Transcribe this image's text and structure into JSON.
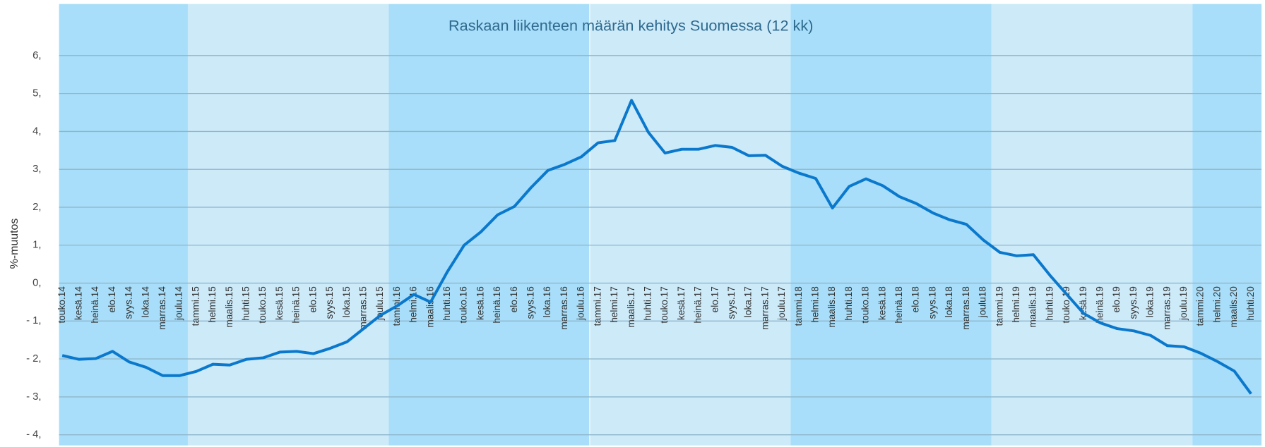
{
  "chart_data": {
    "type": "line",
    "title": "Raskaan liikenteen määrän kehitys Suomessa (12 kk)",
    "y_label": "%-muutos",
    "categories": [
      "touko.14",
      "kesä.14",
      "heinä.14",
      "elo.14",
      "syys.14",
      "loka.14",
      "marras.14",
      "joulu.14",
      "tammi.15",
      "helmi.15",
      "maalis.15",
      "huhti.15",
      "touko.15",
      "kesä.15",
      "heinä.15",
      "elo.15",
      "syys.15",
      "loka.15",
      "marras.15",
      "joulu.15",
      "tammi.16",
      "helmi.16",
      "maalis.16",
      "huhti.16",
      "touko.16",
      "kesä.16",
      "heinä.16",
      "elo.16",
      "syys.16",
      "loka.16",
      "marras.16",
      "joulu.16",
      "tammi.17",
      "helmi.17",
      "maalis.17",
      "huhti.17",
      "touko.17",
      "kesä.17",
      "heinä.17",
      "elo.17",
      "syys.17",
      "loka.17",
      "marras.17",
      "joulu.17",
      "tammi.18",
      "helmi.18",
      "maalis.18",
      "huhti.18",
      "touko.18",
      "kesä.18",
      "heinä.18",
      "elo.18",
      "syys.18",
      "loka.18",
      "marras.18",
      "joulu18",
      "tammi.19",
      "helmi.19",
      "maalis.19",
      "huhti.19",
      "touko.19",
      "kesä.19",
      "heinä.19",
      "elo.19",
      "syys.19",
      "loka.19",
      "marras.19",
      "joulu.19",
      "tammi.20",
      "helmi.20",
      "maalis.20",
      "huhti.20"
    ],
    "series": [
      {
        "name": "%-muutos",
        "color": "#0a78cc",
        "values": [
          -1.91,
          -2.01,
          -1.99,
          -1.8,
          -2.08,
          -2.22,
          -2.44,
          -2.44,
          -2.33,
          -2.14,
          -2.16,
          -2.01,
          -1.97,
          -1.82,
          -1.8,
          -1.86,
          -1.72,
          -1.55,
          -1.2,
          -0.85,
          -0.6,
          -0.3,
          -0.5,
          0.3,
          1.0,
          1.35,
          1.8,
          2.02,
          2.52,
          2.97,
          3.13,
          3.33,
          3.7,
          3.76,
          4.82,
          3.98,
          3.43,
          3.53,
          3.53,
          3.63,
          3.58,
          3.36,
          3.37,
          3.08,
          2.9,
          2.76,
          1.98,
          2.55,
          2.75,
          2.57,
          2.28,
          2.1,
          1.85,
          1.67,
          1.55,
          1.14,
          0.81,
          0.72,
          0.75,
          0.2,
          -0.3,
          -0.8,
          -1.05,
          -1.2,
          -1.26,
          -1.38,
          -1.65,
          -1.68,
          -1.85,
          -2.07,
          -2.32,
          -2.92
        ]
      }
    ],
    "ylim": [
      -4.28,
      7.36
    ],
    "yticks": [
      {
        "value": -4,
        "label": "- 4,"
      },
      {
        "value": -3,
        "label": "- 3,"
      },
      {
        "value": -2,
        "label": "- 2,"
      },
      {
        "value": -1,
        "label": "- 1,"
      },
      {
        "value": 0,
        "label": "0,"
      },
      {
        "value": 1,
        "label": "1,"
      },
      {
        "value": 2,
        "label": "2,"
      },
      {
        "value": 3,
        "label": "3,"
      },
      {
        "value": 4,
        "label": "4,"
      },
      {
        "value": 5,
        "label": "5,"
      },
      {
        "value": 6,
        "label": "6,"
      }
    ],
    "grid": true
  }
}
